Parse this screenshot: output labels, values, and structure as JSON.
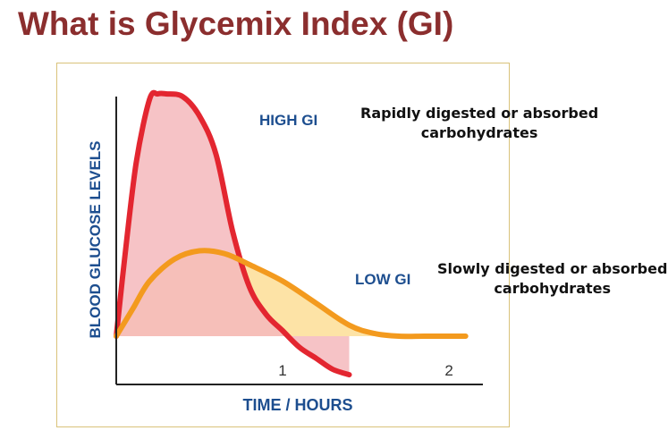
{
  "slide": {
    "title": "What is Glycemix Index (GI)"
  },
  "annotations": {
    "high_line1": "Rapidly digested or absorbed",
    "high_line2": "carbohydrates",
    "low_line1": "Slowly digested or absorbed",
    "low_line2": "carbohydrates"
  },
  "colors": {
    "title": "#8b2e2e",
    "high_line": "#e32630",
    "high_fill": "#f4b9bc",
    "low_line": "#f39a1e",
    "low_fill": "#fde3a6",
    "axis": "#222222",
    "axis_label": "#1d4e8f"
  },
  "chart_data": {
    "type": "area",
    "xlabel": "TIME / HOURS",
    "ylabel": "BLOOD GLUCOSE LEVELS",
    "xlim": [
      0,
      2.15
    ],
    "ylim": [
      0,
      100
    ],
    "x_ticks": [
      1,
      2
    ],
    "x_tick_labels": [
      "1",
      "2"
    ],
    "grid": false,
    "baseline": 12,
    "series": [
      {
        "name": "HIGH GI",
        "x": [
          0,
          0.05,
          0.12,
          0.2,
          0.25,
          0.3,
          0.4,
          0.5,
          0.6,
          0.7,
          0.8,
          0.9,
          1.0,
          1.1,
          1.2,
          1.3,
          1.4
        ],
        "y": [
          12,
          40,
          75,
          98,
          100,
          100,
          99,
          92,
          78,
          50,
          30,
          20,
          14,
          8,
          4,
          0,
          -2
        ]
      },
      {
        "name": "LOW GI",
        "x": [
          0,
          0.1,
          0.2,
          0.35,
          0.5,
          0.65,
          0.8,
          1.0,
          1.2,
          1.4,
          1.55,
          1.7,
          1.85,
          2.0,
          2.1
        ],
        "y": [
          12,
          22,
          32,
          40,
          43,
          42,
          38,
          32,
          24,
          16,
          13,
          12,
          12,
          12,
          12
        ]
      }
    ]
  }
}
